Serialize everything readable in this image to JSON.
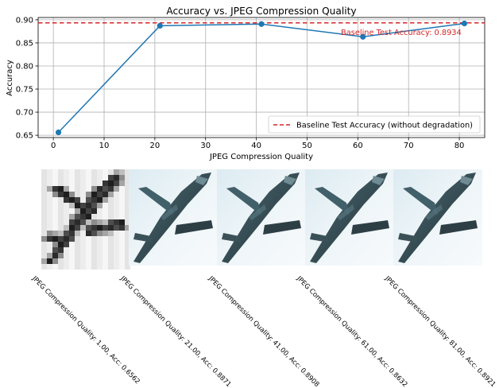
{
  "chart_data": {
    "type": "line",
    "title": "Accuracy vs. JPEG Compression Quality",
    "xlabel": "JPEG Compression Quality",
    "ylabel": "Accuracy",
    "xlim": [
      -3,
      85
    ],
    "ylim": [
      0.645,
      0.905
    ],
    "xticks": [
      0,
      10,
      20,
      30,
      40,
      50,
      60,
      70,
      80
    ],
    "yticks": [
      0.65,
      0.7,
      0.75,
      0.8,
      0.85,
      0.9
    ],
    "ytick_labels": [
      "0.65",
      "0.70",
      "0.75",
      "0.80",
      "0.85",
      "0.90"
    ],
    "grid": true,
    "series": [
      {
        "x": [
          1,
          21,
          41,
          61,
          81
        ],
        "y": [
          0.6562,
          0.8871,
          0.8908,
          0.8632,
          0.8921
        ],
        "color": "#1f77b4",
        "marker": "circle"
      }
    ],
    "baseline": {
      "value": 0.8934,
      "color": "#d62728",
      "style": "dashed",
      "annotation": "Baseline Test Accuracy: 0.8934",
      "legend_label": "Baseline Test Accuracy (without degradation)"
    },
    "legend_position": "lower right"
  },
  "images": [
    {
      "caption": "JPEG Compression Quality: 1.00, Acc: 0.6562",
      "style": "blocky"
    },
    {
      "caption": "JPEG Compression Quality: 21.00, Acc: 0.8871",
      "style": "smooth"
    },
    {
      "caption": "JPEG Compression Quality: 41.00, Acc: 0.8908",
      "style": "smooth"
    },
    {
      "caption": "JPEG Compression Quality: 61.00, Acc: 0.8632",
      "style": "smooth"
    },
    {
      "caption": "JPEG Compression Quality: 81.00, Acc: 0.8921",
      "style": "smooth"
    }
  ]
}
